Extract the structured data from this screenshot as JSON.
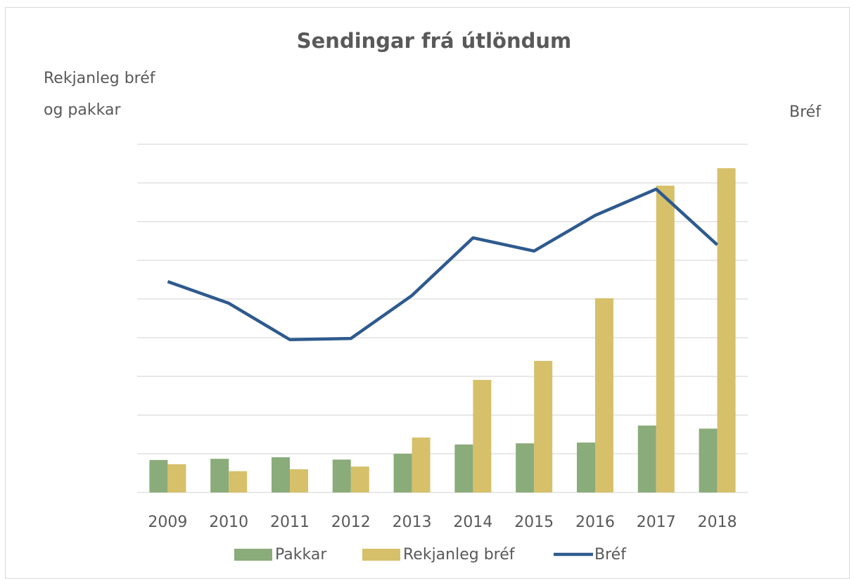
{
  "chart_data": {
    "type": "bar-line",
    "title": "Sendingar frá útlöndum",
    "y_label": [
      "Rekjanleg bréf",
      "og pakkar"
    ],
    "y2_label": "Bréf",
    "categories": [
      "2009",
      "2010",
      "2011",
      "2012",
      "2013",
      "2014",
      "2015",
      "2016",
      "2017",
      "2018"
    ],
    "series": [
      {
        "name": "Pakkar",
        "type": "bar",
        "color": "#8aab7a",
        "values": [
          0.84,
          0.87,
          0.91,
          0.85,
          1.0,
          1.24,
          1.27,
          1.29,
          1.73,
          1.65
        ]
      },
      {
        "name": "Rekjanleg bréf",
        "type": "bar",
        "color": "#d6c06a",
        "values": [
          0.73,
          0.55,
          0.6,
          0.67,
          1.42,
          2.91,
          3.4,
          5.02,
          7.93,
          8.38
        ]
      },
      {
        "name": "Bréf",
        "type": "line",
        "axis": "y2",
        "color": "#2e5a8e",
        "values": [
          5.45,
          4.89,
          3.95,
          3.98,
          5.09,
          6.58,
          6.24,
          7.16,
          7.84,
          6.4
        ]
      }
    ],
    "ylim": [
      0,
      9
    ],
    "yticks": [
      0,
      1,
      2,
      3,
      4,
      5,
      6,
      7,
      8,
      9
    ],
    "y2lim": [
      0,
      9
    ],
    "y2ticks": [
      0,
      1,
      2,
      3,
      4,
      5,
      6,
      7,
      8,
      9
    ],
    "grid": true
  }
}
